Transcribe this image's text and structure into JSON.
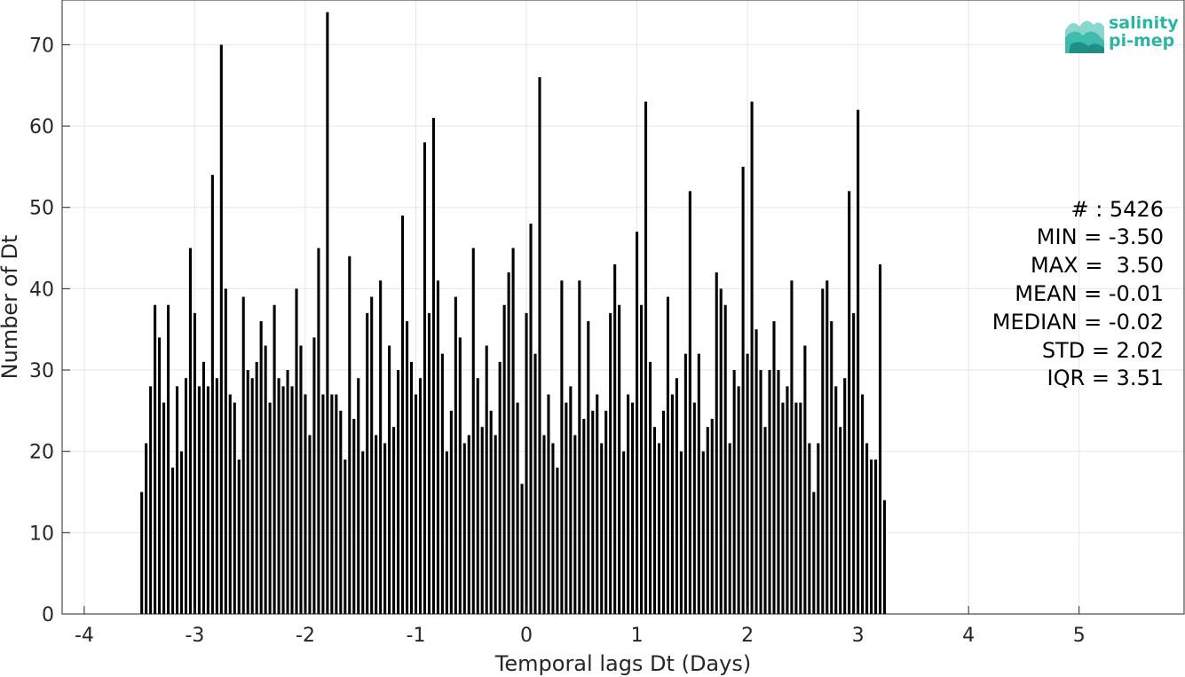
{
  "chart_data": {
    "type": "bar",
    "xlabel": "Temporal lags Dt (Days)",
    "ylabel": "Number of Dt",
    "xlim": [
      -4.2,
      5.95
    ],
    "ylim": [
      0,
      75.5
    ],
    "xticks": [
      -4,
      -3,
      -2,
      -1,
      0,
      1,
      2,
      3,
      4,
      5
    ],
    "yticks": [
      0,
      10,
      20,
      30,
      40,
      50,
      60,
      70
    ],
    "grid": true,
    "bin_start": -3.5,
    "bin_width": 0.04,
    "bar_color": "#000000",
    "values": [
      15,
      21,
      28,
      38,
      34,
      26,
      38,
      18,
      28,
      20,
      29,
      45,
      37,
      28,
      31,
      28,
      54,
      29,
      70,
      40,
      27,
      26,
      19,
      39,
      30,
      29,
      31,
      36,
      33,
      26,
      38,
      29,
      28,
      30,
      28,
      40,
      33,
      27,
      22,
      34,
      45,
      27,
      74,
      27,
      27,
      25,
      19,
      44,
      24,
      29,
      20,
      37,
      39,
      22,
      41,
      21,
      33,
      23,
      30,
      49,
      36,
      31,
      27,
      29,
      58,
      37,
      61,
      41,
      32,
      20,
      25,
      39,
      34,
      21,
      22,
      45,
      29,
      23,
      33,
      25,
      22,
      31,
      38,
      42,
      45,
      26,
      16,
      37,
      48,
      32,
      66,
      22,
      27,
      21,
      18,
      41,
      26,
      28,
      22,
      41,
      24,
      36,
      25,
      27,
      21,
      25,
      37,
      43,
      38,
      20,
      27,
      26,
      47,
      38,
      63,
      31,
      23,
      21,
      25,
      39,
      27,
      29,
      20,
      32,
      52,
      26,
      32,
      20,
      23,
      24,
      42,
      40,
      38,
      21,
      30,
      28,
      55,
      32,
      63,
      35,
      30,
      23,
      30,
      36,
      30,
      26,
      28,
      41,
      26,
      26,
      33,
      21,
      15,
      21,
      40,
      41,
      36,
      28,
      23,
      29,
      52,
      37,
      62,
      27,
      21,
      19,
      19,
      43,
      14
    ]
  },
  "stats": {
    "count": "# : 5426",
    "min": "MIN = -3.50",
    "max": "MAX =  3.50",
    "mean": "MEAN = -0.01",
    "median": "MEDIAN = -0.02",
    "std": "STD = 2.02",
    "iqr": "IQR = 3.51"
  },
  "logo": {
    "line1": "salinity",
    "line2": "pi-mep",
    "color": "#2cb5a5"
  }
}
